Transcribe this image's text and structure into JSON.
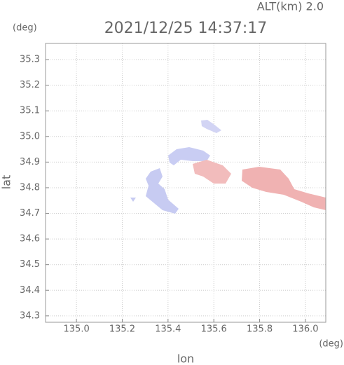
{
  "chart_data": {
    "type": "map",
    "title": "2021/12/25 14:37:17",
    "subtitle": "ALT(km) 2.0",
    "y_unit": "(deg)",
    "x_unit": "(deg)",
    "x_label": "lon",
    "y_label": "lat",
    "xlim": [
      134.865,
      136.089
    ],
    "ylim": [
      34.275,
      35.363
    ],
    "xticks": [
      {
        "value": 135,
        "label": "135.0"
      },
      135.2,
      135.4,
      135.6,
      135.8,
      {
        "value": 136,
        "label": "136.0"
      }
    ],
    "yticks": [
      34.3,
      34.4,
      34.5,
      34.6,
      34.7,
      34.8,
      34.9,
      {
        "value": 35,
        "label": "35.0"
      },
      35.1,
      35.2,
      35.3
    ],
    "grid": true
  }
}
